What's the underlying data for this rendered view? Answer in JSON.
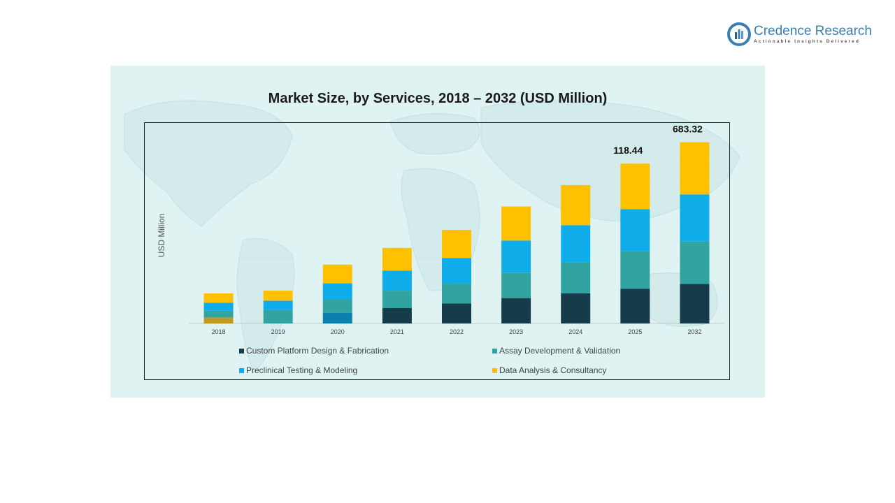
{
  "brand": {
    "name": "Credence Research",
    "tagline": "Actionable Insights Delivered",
    "logo_icon": "credence-research-logo-icon"
  },
  "colors": {
    "brand_blue": "#3b7fb0",
    "background_panel": "#dff3f3"
  },
  "chart_data": {
    "type": "bar",
    "stacked": true,
    "title": "Market Size, by Services, 2018 – 2032 (USD Million)",
    "ylabel": "USD Million",
    "xlabel": "",
    "categories": [
      "2018",
      "2019",
      "2020",
      "2021",
      "2022",
      "2023",
      "2024",
      "2025",
      "2032"
    ],
    "series": [
      {
        "name": "Custom Platform Design & Fabrication",
        "color": "#163b4a",
        "values": [
          9,
          0,
          16,
          23,
          30,
          38,
          45,
          52,
          59
        ]
      },
      {
        "name": "Assay Development & Validation",
        "color": "#31a3a0",
        "values": [
          10,
          20,
          20,
          26,
          30,
          38,
          46,
          56,
          64
        ]
      },
      {
        "name": "Preclinical Testing & Modeling",
        "color": "#0eadea",
        "values": [
          12,
          14,
          24,
          30,
          38,
          48,
          56,
          63,
          70
        ]
      },
      {
        "name": "Data Analysis & Consultancy",
        "color": "#ffc000",
        "values": [
          14,
          15,
          28,
          34,
          42,
          51,
          60,
          68,
          78
        ]
      }
    ],
    "bar_overrides": {
      "2018": {
        "bottom_color": "#c09a1c"
      },
      "2020": {
        "bottom_color": "#0a7fb0"
      }
    },
    "data_labels": [
      {
        "category": "2025",
        "text": "118.44"
      },
      {
        "category": "2032",
        "text": "683.32"
      }
    ],
    "grid": true,
    "legend_position": "bottom"
  }
}
